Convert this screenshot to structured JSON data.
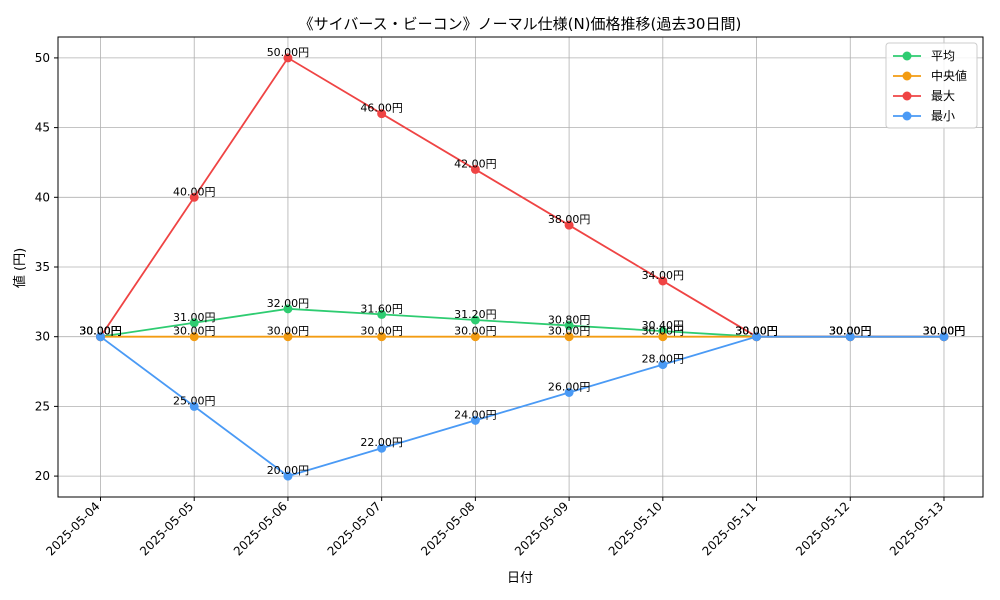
{
  "chart_data": {
    "type": "line",
    "title": "《サイバース・ビーコン》ノーマル仕様(N)価格推移(過去30日間)",
    "xlabel": "日付",
    "ylabel": "値 (円)",
    "categories": [
      "2025-05-04",
      "2025-05-05",
      "2025-05-06",
      "2025-05-07",
      "2025-05-08",
      "2025-05-09",
      "2025-05-10",
      "2025-05-11",
      "2025-05-12",
      "2025-05-13"
    ],
    "ylim": [
      18.5,
      51.5
    ],
    "yticks": [
      20,
      25,
      30,
      35,
      40,
      45,
      50
    ],
    "value_suffix": "円",
    "grid": true,
    "legend_position": "top-right",
    "series": [
      {
        "name": "平均",
        "color": "#2ecc71",
        "values": [
          30,
          31,
          32,
          31.6,
          31.2,
          30.8,
          30.4,
          30,
          30,
          30
        ]
      },
      {
        "name": "中央値",
        "color": "#f39c12",
        "values": [
          30,
          30,
          30,
          30,
          30,
          30,
          30,
          30,
          30,
          30
        ]
      },
      {
        "name": "最大",
        "color": "#ef4444",
        "values": [
          30,
          40,
          50,
          46,
          42,
          38,
          34,
          30,
          30,
          30
        ]
      },
      {
        "name": "最小",
        "color": "#4a9af5",
        "values": [
          30,
          25,
          20,
          22,
          24,
          26,
          28,
          30,
          30,
          30
        ]
      }
    ]
  }
}
